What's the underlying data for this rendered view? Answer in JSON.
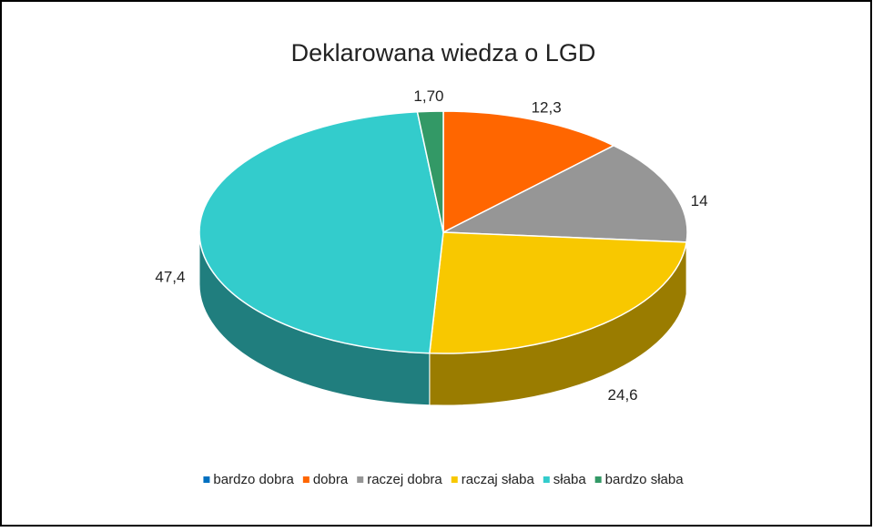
{
  "chart_data": {
    "type": "pie3d",
    "title": "Deklarowana wiedza o LGD",
    "categories": [
      "bardzo dobra",
      "dobra",
      "raczej dobra",
      "raczaj słaba",
      "słaba",
      "bardzo słaba"
    ],
    "values": [
      0,
      12.3,
      14,
      24.6,
      47.4,
      1.7
    ],
    "value_labels": [
      null,
      "12,3",
      "14",
      "24,6",
      "47,4",
      "1,70"
    ],
    "colors": [
      "#0070c0",
      "#ff6600",
      "#969696",
      "#f8c800",
      "#33cccc",
      "#339966"
    ],
    "legend": "bottom"
  }
}
